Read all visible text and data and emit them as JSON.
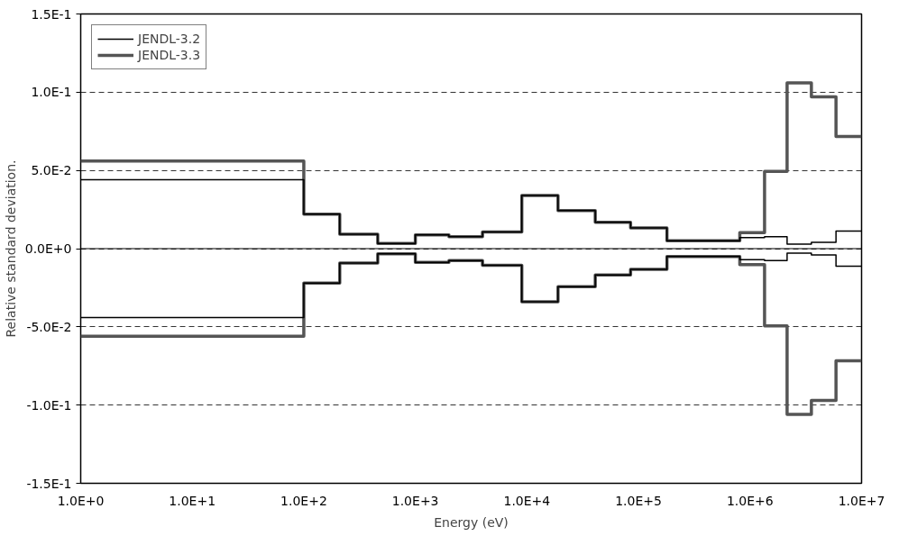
{
  "chart_data": {
    "type": "step",
    "xlabel": "Energy (eV)",
    "ylabel": "Relative standard deviation.",
    "x": [
      1,
      100,
      210,
      460,
      1000,
      2000,
      4000,
      9000,
      19000,
      41000,
      85000,
      180000,
      810000,
      1350000,
      2150000,
      3550000,
      5900000,
      10000000
    ],
    "series": [
      {
        "name": "JENDL-3.2",
        "color": "#000000",
        "values": [
          0.044,
          0.022,
          0.0092,
          0.0033,
          0.0088,
          0.0077,
          0.0106,
          0.034,
          0.0244,
          0.0169,
          0.0133,
          0.005,
          0.0071,
          0.0077,
          0.0029,
          0.004,
          0.0113,
          0.0113
        ]
      },
      {
        "name": "JENDL-3.3",
        "color": "#555555",
        "values": [
          0.056,
          0.022,
          0.0092,
          0.0033,
          0.0088,
          0.0077,
          0.0106,
          0.034,
          0.0244,
          0.0169,
          0.0133,
          0.005,
          0.0102,
          0.0494,
          0.106,
          0.097,
          0.0717,
          0.0717
        ]
      },
      {
        "color": "#000000",
        "values": [
          -0.044,
          -0.022,
          -0.0092,
          -0.0033,
          -0.0088,
          -0.0077,
          -0.0106,
          -0.034,
          -0.0244,
          -0.0169,
          -0.0133,
          -0.005,
          -0.0071,
          -0.0077,
          -0.0029,
          -0.004,
          -0.0113,
          -0.0113
        ]
      },
      {
        "color": "#555555",
        "values": [
          -0.056,
          -0.022,
          -0.0092,
          -0.0033,
          -0.0088,
          -0.0077,
          -0.0106,
          -0.034,
          -0.0244,
          -0.0169,
          -0.0133,
          -0.005,
          -0.0102,
          -0.0494,
          -0.106,
          -0.097,
          -0.0717,
          -0.0717
        ]
      }
    ],
    "log": "x",
    "xlim": [
      1,
      10000000
    ],
    "xticks": [
      {
        "value": 1,
        "label": "1.0E+0"
      },
      {
        "value": 10,
        "label": "1.0E+1"
      },
      {
        "value": 100,
        "label": "1.0E+2"
      },
      {
        "value": 1000,
        "label": "1.0E+3"
      },
      {
        "value": 10000,
        "label": "1.0E+4"
      },
      {
        "value": 100000,
        "label": "1.0E+5"
      },
      {
        "value": 1000000,
        "label": "1.0E+6"
      },
      {
        "value": 10000000,
        "label": "1.0E+7"
      }
    ],
    "ylim": [
      -0.15,
      0.15
    ],
    "yticks": [
      {
        "value": -0.15,
        "label": "-1.5E-1"
      },
      {
        "value": -0.1,
        "label": "-1.0E-1"
      },
      {
        "value": -0.05,
        "label": "-5.0E-2"
      },
      {
        "value": 0,
        "label": "0.0E+0"
      },
      {
        "value": 0.05,
        "label": "5.0E-2"
      },
      {
        "value": 0.1,
        "label": "1.0E-1"
      },
      {
        "value": 0.15,
        "label": "1.5E-1"
      }
    ],
    "ref_lines": [
      {
        "axis": "y",
        "value": 0,
        "color": "#000000"
      }
    ],
    "grid": "y",
    "legend": "top left",
    "line_style": "solid"
  }
}
